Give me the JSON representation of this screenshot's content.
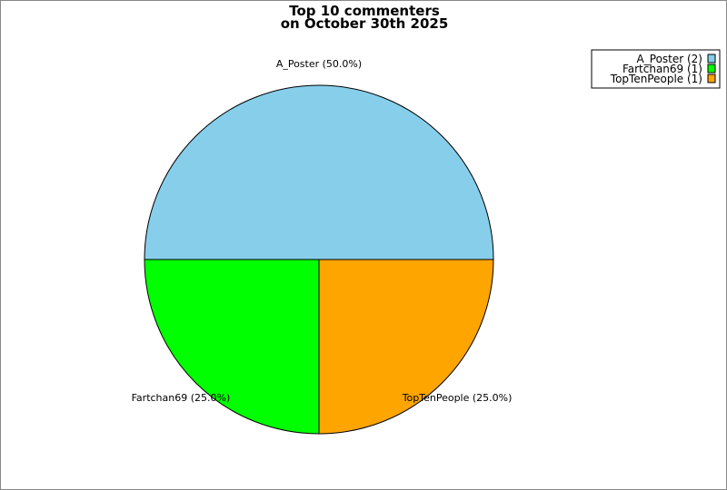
{
  "chart_data": {
    "type": "pie",
    "title_line1": "Top 10 commenters",
    "title_line2": "on October 30th 2025",
    "slices": [
      {
        "name": "A_Poster",
        "value": 2,
        "label": "A_Poster (50.0%)",
        "legend": "A_Poster (2)",
        "color": "#87ceeb"
      },
      {
        "name": "Fartchan69",
        "value": 1,
        "label": "Fartchan69 (25.0%)",
        "legend": "Fartchan69 (1)",
        "color": "#00ff00"
      },
      {
        "name": "TopTenPeople",
        "value": 1,
        "label": "TopTenPeople (25.0%)",
        "legend": "TopTenPeople (1)",
        "color": "#ffa500"
      }
    ],
    "legend_position": "top-right"
  }
}
